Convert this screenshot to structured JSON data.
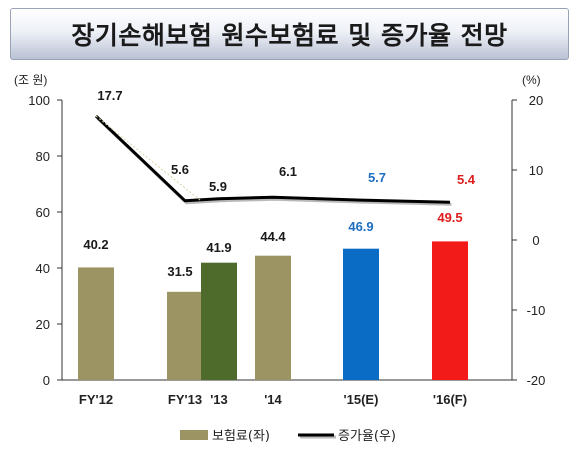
{
  "title": "장기손해보험 원수보험료 및 증가율 전망",
  "chart_data": {
    "type": "bar",
    "left_unit": "(조 원)",
    "right_unit": "(%)",
    "left_axis": {
      "ylim": [
        0,
        100
      ],
      "ticks": [
        "0",
        "20",
        "40",
        "60",
        "80",
        "100"
      ]
    },
    "right_axis": {
      "ylim": [
        -20,
        20
      ],
      "ticks": [
        "-20",
        "-10",
        "0",
        "10",
        "20"
      ]
    },
    "categories": [
      "FY'12",
      "FY'13",
      "'13",
      "'14",
      "'15(E)",
      "'16(F)"
    ],
    "bars": [
      {
        "category": "FY'12",
        "value": 40.2,
        "label": "40.2",
        "color": "#9d9464",
        "label_color": "#1a1a1a"
      },
      {
        "category": "FY'13",
        "value": 31.5,
        "label": "31.5",
        "color": "#9d9464",
        "label_color": "#1a1a1a"
      },
      {
        "category": "'13",
        "value": 41.9,
        "label": "41.9",
        "color": "#4e6b2c",
        "label_color": "#1a1a1a"
      },
      {
        "category": "'14",
        "value": 44.4,
        "label": "44.4",
        "color": "#9d9464",
        "label_color": "#1a1a1a"
      },
      {
        "category": "'15(E)",
        "value": 46.9,
        "label": "46.9",
        "color": "#0a6cc4",
        "label_color": "#1f6fc0"
      },
      {
        "category": "'16(F)",
        "value": 49.5,
        "label": "49.5",
        "color": "#f31a1a",
        "label_color": "#e01b1b"
      }
    ],
    "growth_line": [
      {
        "category": "FY'12",
        "value": 17.7,
        "label": "17.7",
        "label_color": "#1a1a1a"
      },
      {
        "category": "FY'13",
        "value": 5.6,
        "label": "5.6",
        "label_color": "#1a1a1a"
      },
      {
        "category": "'13",
        "value": 5.9,
        "label": "5.9",
        "label_color": "#1a1a1a"
      },
      {
        "category": "'14",
        "value": 6.1,
        "label": "6.1",
        "label_color": "#1a1a1a"
      },
      {
        "category": "'15(E)",
        "value": 5.7,
        "label": "5.7",
        "label_color": "#1f6fc0"
      },
      {
        "category": "'16(F)",
        "value": 5.4,
        "label": "5.4",
        "label_color": "#e01b1b"
      }
    ],
    "legend": [
      {
        "label": "보험료(좌)",
        "kind": "bar",
        "color": "#9d9464"
      },
      {
        "label": "증가율(우)",
        "kind": "line",
        "color": "#000000"
      }
    ],
    "legend_position": "bottom",
    "grid": false
  }
}
